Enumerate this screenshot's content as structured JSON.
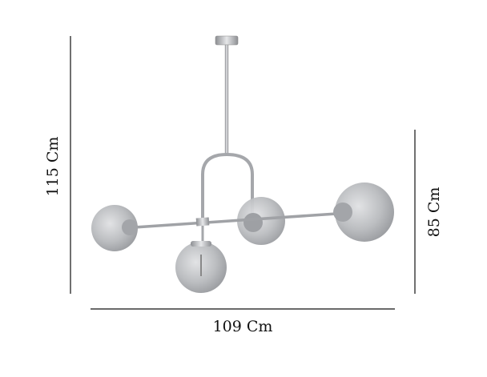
{
  "dimensions": {
    "height_total": "115 Cm",
    "height_body": "85 Cm",
    "width": "109 Cm"
  },
  "product": {
    "type": "pendant-lamp-icon",
    "globe_count": 4
  },
  "colors": {
    "line": "#111111",
    "metal": "#a9a9ad",
    "glass": "#b8babd"
  }
}
